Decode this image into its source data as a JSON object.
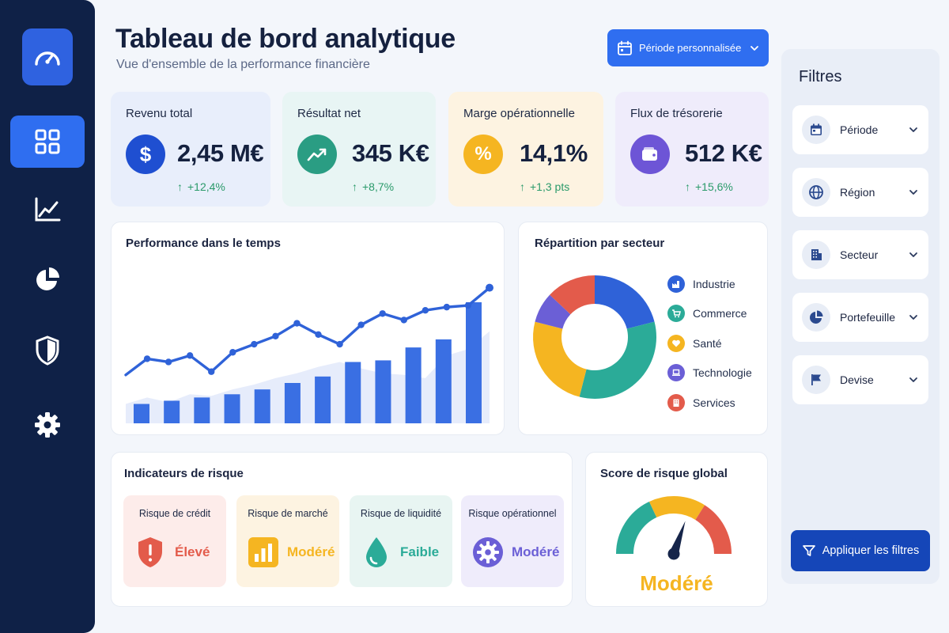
{
  "header": {
    "title": "Tableau de bord analytique",
    "subtitle": "Vue d'ensemble de la performance financière",
    "period_button": "Période personnalisée"
  },
  "sidebar": {
    "items": [
      {
        "icon": "grid-icon",
        "active": true
      },
      {
        "icon": "line-chart-icon",
        "active": false
      },
      {
        "icon": "pie-chart-icon",
        "active": false
      },
      {
        "icon": "shield-icon",
        "active": false
      },
      {
        "icon": "gear-icon",
        "active": false
      }
    ]
  },
  "kpis": [
    {
      "label": "Revenu total",
      "value": "2,45 M€",
      "delta": "+12,4%",
      "icon": "dollar-icon",
      "color": "#1f4fd1",
      "bg": "#e8eefb"
    },
    {
      "label": "Résultat net",
      "value": "345 K€",
      "delta": "+8,7%",
      "icon": "trend-up-icon",
      "color": "#2a9d83",
      "bg": "#e8f5f4"
    },
    {
      "label": "Marge opérationnelle",
      "value": "14,1%",
      "delta": "+1,3 pts",
      "icon": "percent-icon",
      "color": "#f5b521",
      "bg": "#fdf3e1"
    },
    {
      "label": "Flux de trésorerie",
      "value": "512 K€",
      "delta": "+15,6%",
      "icon": "wallet-icon",
      "color": "#6d55d6",
      "bg": "#efecfb"
    }
  ],
  "performance": {
    "title": "Performance dans le temps"
  },
  "chart_data": [
    {
      "type": "line",
      "title": "Performance dans le temps",
      "xlabel": "",
      "ylabel": "",
      "grid": false,
      "x": [
        1,
        2,
        3,
        4,
        5,
        6,
        7,
        8,
        9,
        10,
        11,
        12,
        13,
        14,
        15,
        16,
        17,
        18
      ],
      "series": [
        {
          "values": [
            30,
            40,
            38,
            42,
            32,
            44,
            49,
            54,
            62,
            55,
            49,
            61,
            68,
            64,
            70,
            72,
            73,
            84
          ],
          "color": "#2f62d8"
        },
        {
          "values": [
            12,
            16,
            13,
            18,
            17,
            21,
            24,
            28,
            31,
            35,
            38,
            34,
            31,
            30,
            28,
            42,
            46,
            57
          ],
          "color": "#e6ecfb"
        }
      ],
      "bars": [
        12,
        12,
        14,
        16,
        18,
        18,
        21,
        24,
        25,
        29,
        31,
        38,
        39,
        43,
        47,
        52,
        55,
        75
      ],
      "ylim": [
        0,
        100
      ]
    },
    {
      "type": "pie",
      "title": "Répartition par secteur",
      "categories": [
        "Industrie",
        "Commerce",
        "Santé",
        "Technologie",
        "Services"
      ],
      "values": [
        21,
        33,
        25,
        8,
        13
      ],
      "colors": [
        "#2f62d8",
        "#2bab98",
        "#f5b521",
        "#6b5fd6",
        "#e35b4b"
      ]
    },
    {
      "type": "gauge",
      "title": "Score de risque global",
      "value": 0.55,
      "label": "Modéré",
      "colors": [
        "#2bab98",
        "#f5b521",
        "#e35b4b"
      ]
    }
  ],
  "sectors": {
    "title": "Répartition par secteur",
    "items": [
      {
        "label": "Industrie",
        "icon": "factory-icon",
        "color": "#2f62d8"
      },
      {
        "label": "Commerce",
        "icon": "cart-icon",
        "color": "#2bab98"
      },
      {
        "label": "Santé",
        "icon": "heart-icon",
        "color": "#f5b521"
      },
      {
        "label": "Technologie",
        "icon": "laptop-icon",
        "color": "#6b5fd6"
      },
      {
        "label": "Services",
        "icon": "building-icon",
        "color": "#e35b4b"
      }
    ]
  },
  "risk": {
    "title": "Indicateurs de risque",
    "tiles": [
      {
        "label": "Risque de crédit",
        "value": "Élevé",
        "icon": "shield-alert-icon",
        "color": "#e35b4b",
        "bg": "#fdecea"
      },
      {
        "label": "Risque de marché",
        "value": "Modéré",
        "icon": "bar-chart-icon",
        "color": "#f5b521",
        "bg": "#fdf3e1"
      },
      {
        "label": "Risque de liquidité",
        "value": "Faible",
        "icon": "droplet-icon",
        "color": "#2bab98",
        "bg": "#e8f5f2"
      },
      {
        "label": "Risque opérationnel",
        "value": "Modéré",
        "icon": "gear-icon",
        "color": "#6b5fd6",
        "bg": "#efecfb"
      }
    ]
  },
  "gauge": {
    "title": "Score de risque global",
    "label": "Modéré",
    "label_color": "#f5b521"
  },
  "filters": {
    "title": "Filtres",
    "items": [
      {
        "label": "Période",
        "icon": "calendar-icon"
      },
      {
        "label": "Région",
        "icon": "globe-icon"
      },
      {
        "label": "Secteur",
        "icon": "building-icon"
      },
      {
        "label": "Portefeuille",
        "icon": "pie-chart-icon"
      },
      {
        "label": "Devise",
        "icon": "flag-icon"
      }
    ],
    "apply": "Appliquer les filtres"
  }
}
